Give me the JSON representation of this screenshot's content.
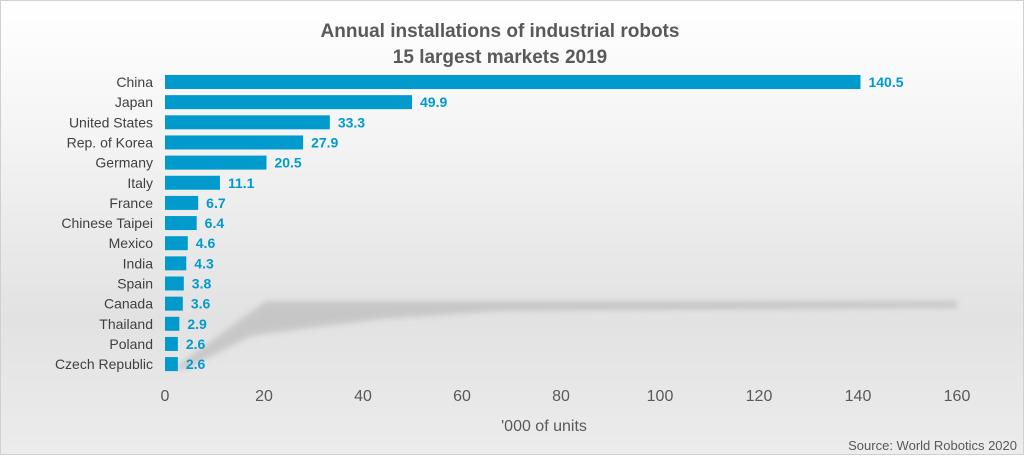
{
  "chart_data": {
    "type": "bar",
    "orientation": "horizontal",
    "title": "Annual installations of industrial robots",
    "subtitle": "15 largest markets 2019",
    "categories": [
      "China",
      "Japan",
      "United States",
      "Rep. of Korea",
      "Germany",
      "Italy",
      "France",
      "Chinese Taipei",
      "Mexico",
      "India",
      "Spain",
      "Canada",
      "Thailand",
      "Poland",
      "Czech Republic"
    ],
    "values": [
      140.5,
      49.9,
      33.3,
      27.9,
      20.5,
      11.1,
      6.7,
      6.4,
      4.6,
      4.3,
      3.8,
      3.6,
      2.9,
      2.6,
      2.6
    ],
    "data_labels": [
      "140.5",
      "49.9",
      "33.3",
      "27.9",
      "20.5",
      "11.1",
      "6.7",
      "6.4",
      "4.6",
      "4.3",
      "3.8",
      "3.6",
      "2.9",
      "2.6",
      "2.6"
    ],
    "xlabel": "'000 of units",
    "ylabel": "",
    "xlim": [
      0,
      160
    ],
    "xticks": [
      "0",
      "20",
      "40",
      "60",
      "80",
      "100",
      "120",
      "140",
      "160"
    ],
    "grid": false,
    "legend": "none",
    "source": "Source: World Robotics 2020",
    "colors": {
      "bar": "#009ACD",
      "label": "#009ACD"
    }
  }
}
